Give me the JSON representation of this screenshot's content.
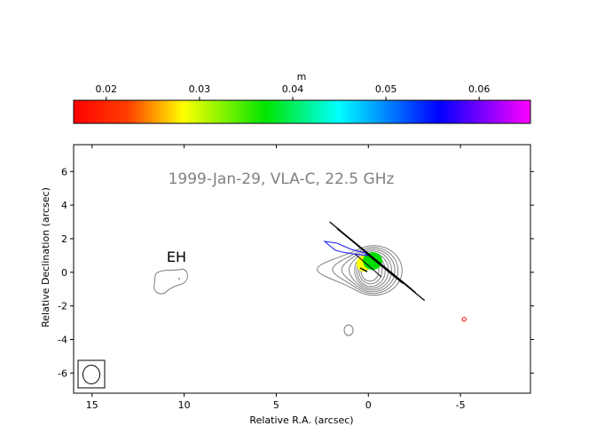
{
  "chart_data": {
    "type": "contour",
    "title": "1999-Jan-29, VLA-C, 22.5 GHz",
    "annotation": "EH",
    "xlabel": "Relative R.A. (arcsec)",
    "ylabel": "Relative Declination (arcsec)",
    "xlim": [
      16,
      -8.8
    ],
    "ylim": [
      -7.2,
      7.6
    ],
    "xticks": [
      15,
      10,
      5,
      0,
      -5
    ],
    "xtick_labels": [
      "15",
      "10",
      "5",
      "0",
      "-5"
    ],
    "yticks": [
      6,
      4,
      2,
      0,
      -2,
      -4,
      -6
    ],
    "ytick_labels": [
      "6",
      "4",
      "2",
      "0",
      "-2",
      "-4",
      "-6"
    ],
    "colorbar": {
      "label": "m",
      "range": [
        0.0165,
        0.0655
      ],
      "ticks": [
        0.02,
        0.03,
        0.04,
        0.05,
        0.06
      ],
      "tick_labels": [
        "0.02",
        "0.03",
        "0.04",
        "0.05",
        "0.06"
      ],
      "colors": [
        "#ff0000",
        "#ff8000",
        "#ffff00",
        "#00e600",
        "#00ffff",
        "#0000ff",
        "#ff00ff"
      ]
    },
    "contour_color": "#808080",
    "core": {
      "x": 0,
      "y": 0,
      "peak_colors": [
        "#ffff00",
        "#00dd00"
      ]
    },
    "beam": {
      "x": 14.8,
      "y": -6.1,
      "major": 1.0,
      "minor": 0.9
    },
    "polarization_vectors": [
      {
        "x": 2.1,
        "y": 3.0,
        "angle": -42,
        "length": 6.0
      },
      {
        "x": 1.7,
        "y": 2.6,
        "angle": -42,
        "length": 6.4
      },
      {
        "x": 1.0,
        "y": 2.0,
        "angle": -42,
        "length": 4.8
      },
      {
        "x": 0.6,
        "y": 1.6,
        "angle": -42,
        "length": 3.2
      },
      {
        "x": 0.2,
        "y": 1.2,
        "angle": -42,
        "length": 2.8
      }
    ],
    "blue_arrow": {
      "x1": 2.4,
      "y1": 1.1,
      "x2": 0.6,
      "y2": 0.5
    },
    "red_marker": {
      "x": -5.2,
      "y": -2.8
    }
  }
}
